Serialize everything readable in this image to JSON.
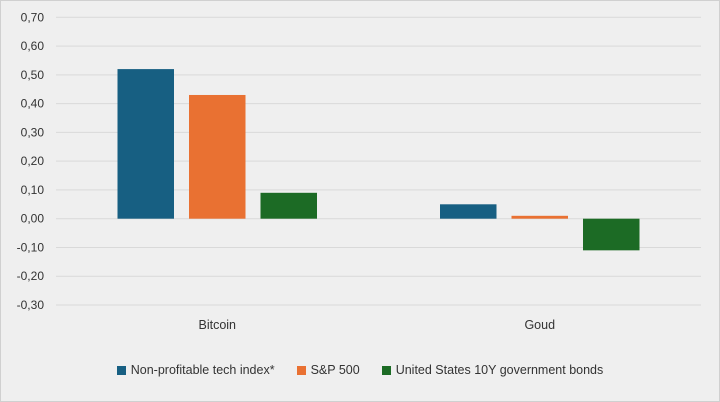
{
  "chart_data": {
    "type": "bar",
    "categories": [
      "Bitcoin",
      "Goud"
    ],
    "series": [
      {
        "name": "Non-profitable tech index*",
        "color": "#175f82",
        "values": [
          0.52,
          0.05
        ]
      },
      {
        "name": "S&P 500",
        "color": "#e97132",
        "values": [
          0.43,
          0.01
        ]
      },
      {
        "name": "United States 10Y government bonds",
        "color": "#1c6b25",
        "values": [
          0.09,
          -0.11
        ]
      }
    ],
    "ylim": [
      -0.3,
      0.7
    ],
    "yticks": [
      "0,70",
      "0,60",
      "0,50",
      "0,40",
      "0,30",
      "0,20",
      "0,10",
      "0,00",
      "-0,10",
      "-0,20",
      "-0,30"
    ],
    "grid": true,
    "legend": "bottom",
    "title": "",
    "xlabel": "",
    "ylabel": ""
  }
}
